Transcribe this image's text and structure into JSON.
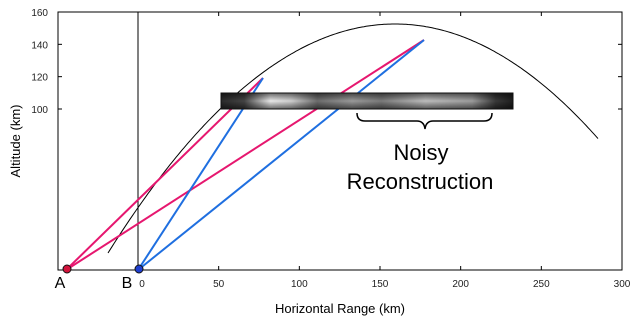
{
  "figure": {
    "x_axis_label": "Horizontal Range (km)",
    "y_axis_label": "Altitude (km)",
    "x_ticks": [
      0,
      50,
      100,
      150,
      200,
      250,
      300
    ],
    "y_ticks": [
      100,
      120,
      140,
      160
    ],
    "stations": [
      {
        "label": "A",
        "x_km": -45
      },
      {
        "label": "B",
        "x_km": 0
      }
    ],
    "annotation": {
      "line1": "Noisy",
      "line2": "Reconstruction"
    },
    "colors": {
      "magenta": "#e6176f",
      "blue": "#1f6fe0",
      "frame": "#000000"
    }
  }
}
